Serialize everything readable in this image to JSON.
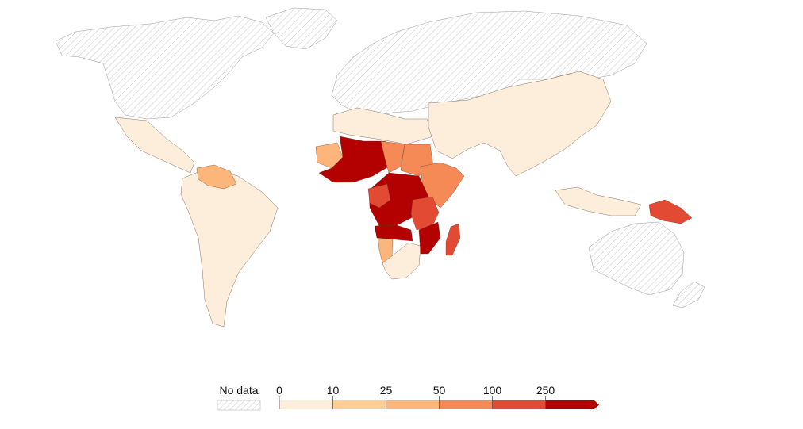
{
  "legend": {
    "no_data_label": "No data",
    "thresholds": [
      "0",
      "10",
      "25",
      "50",
      "100",
      "250"
    ],
    "bins": [
      {
        "color": "#fdeedb"
      },
      {
        "color": "#fdcf94"
      },
      {
        "color": "#fcb57a"
      },
      {
        "color": "#f58a56"
      },
      {
        "color": "#e34a33"
      },
      {
        "color": "#b30000"
      }
    ]
  },
  "colors": {
    "no_data_hatch": "#bdbdbd",
    "border": "#5a3a2a"
  },
  "regions": [
    {
      "name": "north-america",
      "bin": null
    },
    {
      "name": "greenland",
      "bin": null
    },
    {
      "name": "europe-russia",
      "bin": null
    },
    {
      "name": "australia",
      "bin": null
    },
    {
      "name": "mexico-central-america",
      "bin": 0
    },
    {
      "name": "south-america",
      "bin": 0
    },
    {
      "name": "venezuela-guyana",
      "bin": 2
    },
    {
      "name": "north-africa",
      "bin": 0
    },
    {
      "name": "middle-east-asia",
      "bin": 0
    },
    {
      "name": "western-sahara-mauritania",
      "bin": 2
    },
    {
      "name": "sahel-west-africa",
      "bin": 5
    },
    {
      "name": "chad-region",
      "bin": 3
    },
    {
      "name": "sudan",
      "bin": 3
    },
    {
      "name": "ethiopia-somalia",
      "bin": 3
    },
    {
      "name": "central-africa",
      "bin": 5
    },
    {
      "name": "cameroon-gabon",
      "bin": 4
    },
    {
      "name": "east-africa",
      "bin": 4
    },
    {
      "name": "angola-zambia",
      "bin": 5
    },
    {
      "name": "namibia",
      "bin": 2
    },
    {
      "name": "southern-africa",
      "bin": 0
    },
    {
      "name": "mozambique",
      "bin": 5
    },
    {
      "name": "madagascar",
      "bin": 4
    },
    {
      "name": "southeast-asia-islands",
      "bin": 0
    },
    {
      "name": "papua-new-guinea",
      "bin": 4
    }
  ]
}
